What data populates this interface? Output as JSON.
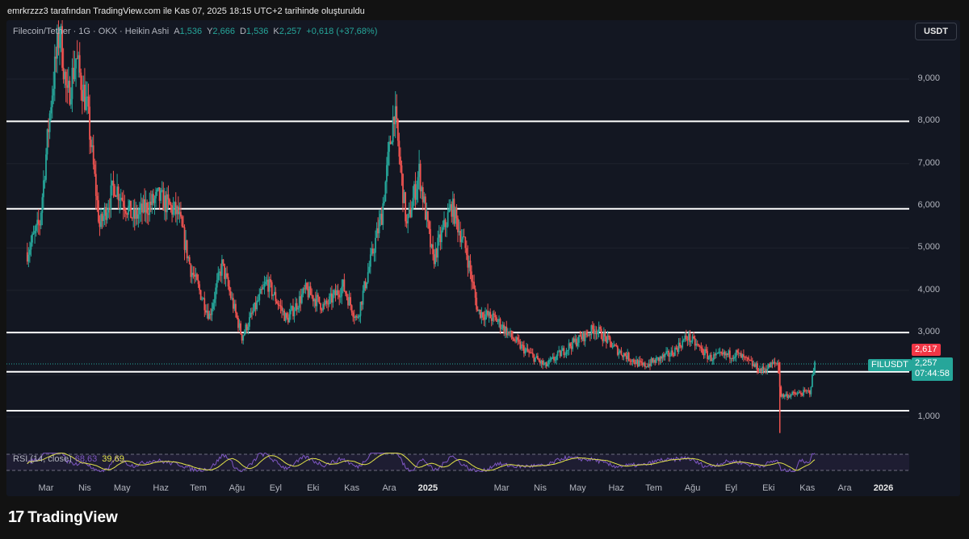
{
  "caption": "emrkrzzz3 tarafından TradingView.com ile Kas 07, 2025 18:15 UTC+2 tarihinde oluşturuldu",
  "legend": {
    "symbol": "Filecoin/Tether · 1G · OKX · Heikin Ashi",
    "a_key": "A",
    "a_val": "1,536",
    "y_key": "Y",
    "y_val": "2,666",
    "d_key": "D",
    "d_val": "1,536",
    "k_key": "K",
    "k_val": "2,257",
    "change": "+0,618 (+37,68%)"
  },
  "currency_button": "USDT",
  "price_tags": {
    "high": "2,617",
    "symbol": "FILUSDT",
    "last": "2,257",
    "countdown": "07:44:58"
  },
  "rsi": {
    "label": "RSI (14, close)",
    "value1": "68,63",
    "value2": "39,69"
  },
  "footer": {
    "logo_mark": "17",
    "logo_text": "TradingView"
  },
  "colors": {
    "up": "#26a69a",
    "down": "#ef5350",
    "background": "#131722",
    "rsi_line": "#7e57c2",
    "rsi_ma": "#e3e34a"
  },
  "chart_data": {
    "type": "candlestick",
    "title": "Filecoin/Tether · 1G · OKX · Heikin Ashi",
    "y_axis": {
      "side": "right",
      "ticks": [
        "1,000",
        "2,000",
        "3,000",
        "4,000",
        "5,000",
        "6,000",
        "7,000",
        "8,000",
        "9,000"
      ],
      "range": [
        0.0,
        10.0
      ]
    },
    "x_axis": {
      "ticks": [
        "Mar",
        "Nis",
        "May",
        "Haz",
        "Tem",
        "Ağu",
        "Eyl",
        "Eki",
        "Kas",
        "Ara",
        "2025",
        "Mar",
        "Nis",
        "May",
        "Haz",
        "Tem",
        "Ağu",
        "Eyl",
        "Eki",
        "Kas",
        "Ara",
        "2026"
      ],
      "bold": [
        "2025",
        "2026"
      ]
    },
    "horizontal_levels": [
      8.0,
      5.93,
      3.0,
      2.07,
      1.15
    ],
    "last_price": 2.257,
    "price_path": [
      {
        "date": "2024-02-15",
        "price": 4.9
      },
      {
        "date": "2024-02-25",
        "price": 5.6
      },
      {
        "date": "2024-03-05",
        "price": 8.5
      },
      {
        "date": "2024-03-12",
        "price": 10.2
      },
      {
        "date": "2024-03-18",
        "price": 8.5
      },
      {
        "date": "2024-03-25",
        "price": 9.5
      },
      {
        "date": "2024-04-03",
        "price": 8.3
      },
      {
        "date": "2024-04-13",
        "price": 5.5
      },
      {
        "date": "2024-04-25",
        "price": 6.5
      },
      {
        "date": "2024-05-10",
        "price": 5.7
      },
      {
        "date": "2024-05-30",
        "price": 6.2
      },
      {
        "date": "2024-06-15",
        "price": 5.8
      },
      {
        "date": "2024-06-25",
        "price": 4.5
      },
      {
        "date": "2024-07-10",
        "price": 3.4
      },
      {
        "date": "2024-07-20",
        "price": 4.6
      },
      {
        "date": "2024-08-05",
        "price": 2.9
      },
      {
        "date": "2024-08-25",
        "price": 4.2
      },
      {
        "date": "2024-09-10",
        "price": 3.3
      },
      {
        "date": "2024-09-25",
        "price": 4.0
      },
      {
        "date": "2024-10-10",
        "price": 3.6
      },
      {
        "date": "2024-10-25",
        "price": 4.1
      },
      {
        "date": "2024-11-05",
        "price": 3.3
      },
      {
        "date": "2024-11-25",
        "price": 5.8
      },
      {
        "date": "2024-12-05",
        "price": 8.3
      },
      {
        "date": "2024-12-15",
        "price": 5.5
      },
      {
        "date": "2024-12-25",
        "price": 6.8
      },
      {
        "date": "2025-01-05",
        "price": 4.7
      },
      {
        "date": "2025-01-20",
        "price": 6.0
      },
      {
        "date": "2025-02-01",
        "price": 4.9
      },
      {
        "date": "2025-02-10",
        "price": 3.5
      },
      {
        "date": "2025-02-25",
        "price": 3.3
      },
      {
        "date": "2025-03-15",
        "price": 2.7
      },
      {
        "date": "2025-04-05",
        "price": 2.2
      },
      {
        "date": "2025-04-25",
        "price": 2.7
      },
      {
        "date": "2025-05-15",
        "price": 3.1
      },
      {
        "date": "2025-06-01",
        "price": 2.6
      },
      {
        "date": "2025-06-22",
        "price": 2.2
      },
      {
        "date": "2025-07-15",
        "price": 2.5
      },
      {
        "date": "2025-07-28",
        "price": 2.9
      },
      {
        "date": "2025-08-15",
        "price": 2.4
      },
      {
        "date": "2025-09-05",
        "price": 2.5
      },
      {
        "date": "2025-09-25",
        "price": 2.1
      },
      {
        "date": "2025-10-08",
        "price": 2.3
      },
      {
        "date": "2025-10-11",
        "price": 1.5
      },
      {
        "date": "2025-10-25",
        "price": 1.55
      },
      {
        "date": "2025-11-03",
        "price": 1.6
      },
      {
        "date": "2025-11-07",
        "price": 2.257
      }
    ],
    "extremes": {
      "wick_low": {
        "date": "2025-10-10",
        "price": 0.62
      }
    },
    "rsi": {
      "period": 14,
      "source": "close",
      "values": [
        68.63,
        39.69
      ]
    }
  }
}
